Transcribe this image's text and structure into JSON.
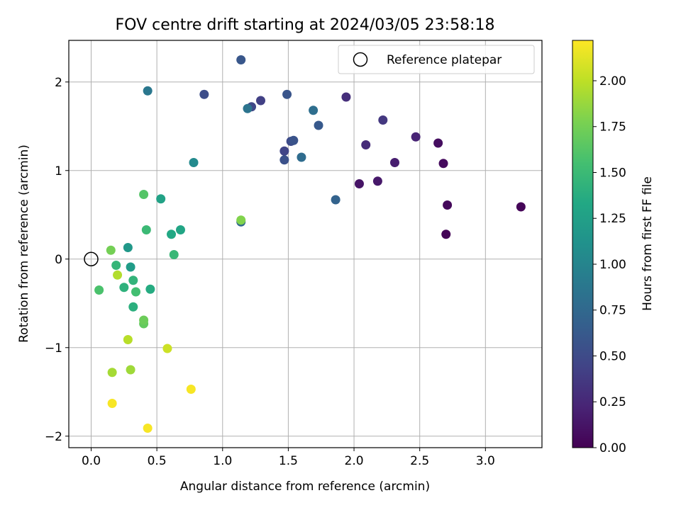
{
  "chart_data": {
    "type": "scatter",
    "title": "FOV centre drift starting at 2024/03/05 23:58:18",
    "xlabel": "Angular distance from reference (arcmin)",
    "ylabel": "Rotation from reference (arcmin)",
    "xlim": [
      -0.17,
      3.43
    ],
    "ylim": [
      -2.13,
      2.47
    ],
    "xticks": [
      0.0,
      0.5,
      1.0,
      1.5,
      2.0,
      2.5,
      3.0
    ],
    "xtick_labels": [
      "0.0",
      "0.5",
      "1.0",
      "1.5",
      "2.0",
      "2.5",
      "3.0"
    ],
    "yticks": [
      -2,
      -1,
      0,
      1,
      2
    ],
    "ytick_labels": [
      "−2",
      "−1",
      "0",
      "1",
      "2"
    ],
    "grid": true,
    "legend": {
      "position": "top-right",
      "entries": [
        "Reference platepar"
      ]
    },
    "reference_point": {
      "x": 0.0,
      "y": 0.0,
      "name": "Reference platepar"
    },
    "colorbar": {
      "label": "Hours from first FF file",
      "colormap": "viridis",
      "range": [
        0.0,
        2.22
      ],
      "ticks": [
        0.0,
        0.25,
        0.5,
        0.75,
        1.0,
        1.25,
        1.5,
        1.75,
        2.0
      ],
      "tick_labels": [
        "0.00",
        "0.25",
        "0.50",
        "0.75",
        "1.00",
        "1.25",
        "1.50",
        "1.75",
        "2.00"
      ]
    },
    "points": [
      {
        "x": 2.7,
        "y": 0.28,
        "h": 0.02
      },
      {
        "x": 3.27,
        "y": 0.59,
        "h": 0.03
      },
      {
        "x": 2.71,
        "y": 0.61,
        "h": 0.05
      },
      {
        "x": 2.68,
        "y": 1.08,
        "h": 0.06
      },
      {
        "x": 2.64,
        "y": 1.31,
        "h": 0.08
      },
      {
        "x": 2.04,
        "y": 0.85,
        "h": 0.12
      },
      {
        "x": 2.18,
        "y": 0.88,
        "h": 0.15
      },
      {
        "x": 2.31,
        "y": 1.09,
        "h": 0.18
      },
      {
        "x": 2.47,
        "y": 1.38,
        "h": 0.22
      },
      {
        "x": 2.09,
        "y": 1.29,
        "h": 0.27
      },
      {
        "x": 1.94,
        "y": 1.83,
        "h": 0.3
      },
      {
        "x": 2.22,
        "y": 1.57,
        "h": 0.36
      },
      {
        "x": 1.29,
        "y": 1.79,
        "h": 0.42
      },
      {
        "x": 1.47,
        "y": 1.22,
        "h": 0.45
      },
      {
        "x": 1.22,
        "y": 1.72,
        "h": 0.48
      },
      {
        "x": 1.52,
        "y": 1.33,
        "h": 0.5
      },
      {
        "x": 0.86,
        "y": 1.86,
        "h": 0.52
      },
      {
        "x": 1.47,
        "y": 1.12,
        "h": 0.55
      },
      {
        "x": 1.54,
        "y": 1.34,
        "h": 0.57
      },
      {
        "x": 1.49,
        "y": 1.86,
        "h": 0.58
      },
      {
        "x": 1.14,
        "y": 2.25,
        "h": 0.6
      },
      {
        "x": 1.73,
        "y": 1.51,
        "h": 0.62
      },
      {
        "x": 1.86,
        "y": 0.67,
        "h": 0.7
      },
      {
        "x": 1.14,
        "y": 0.42,
        "h": 0.75
      },
      {
        "x": 1.6,
        "y": 1.15,
        "h": 0.78
      },
      {
        "x": 1.69,
        "y": 1.68,
        "h": 0.8
      },
      {
        "x": 1.19,
        "y": 1.7,
        "h": 0.85
      },
      {
        "x": 0.43,
        "y": 1.9,
        "h": 0.88
      },
      {
        "x": 0.78,
        "y": 1.09,
        "h": 1.05
      },
      {
        "x": 0.28,
        "y": 0.13,
        "h": 1.18
      },
      {
        "x": 0.3,
        "y": -0.09,
        "h": 1.22
      },
      {
        "x": 0.53,
        "y": 0.68,
        "h": 1.27
      },
      {
        "x": 0.68,
        "y": 0.33,
        "h": 1.3
      },
      {
        "x": 0.61,
        "y": 0.28,
        "h": 1.33
      },
      {
        "x": 0.45,
        "y": -0.34,
        "h": 1.36
      },
      {
        "x": 0.32,
        "y": -0.54,
        "h": 1.4
      },
      {
        "x": 0.25,
        "y": -0.32,
        "h": 1.42
      },
      {
        "x": 0.32,
        "y": -0.24,
        "h": 1.44
      },
      {
        "x": 0.19,
        "y": -0.07,
        "h": 1.46
      },
      {
        "x": 0.63,
        "y": 0.05,
        "h": 1.48
      },
      {
        "x": 0.42,
        "y": 0.33,
        "h": 1.5
      },
      {
        "x": 0.34,
        "y": -0.37,
        "h": 1.54
      },
      {
        "x": 0.06,
        "y": -0.35,
        "h": 1.58
      },
      {
        "x": 0.4,
        "y": 0.73,
        "h": 1.62
      },
      {
        "x": 0.4,
        "y": -0.73,
        "h": 1.68
      },
      {
        "x": 0.4,
        "y": -0.69,
        "h": 1.72
      },
      {
        "x": 0.15,
        "y": 0.1,
        "h": 1.75
      },
      {
        "x": 1.14,
        "y": 0.44,
        "h": 1.8
      },
      {
        "x": 0.3,
        "y": -1.25,
        "h": 1.9
      },
      {
        "x": 0.16,
        "y": -1.28,
        "h": 1.92
      },
      {
        "x": 0.2,
        "y": -0.18,
        "h": 1.96
      },
      {
        "x": 0.28,
        "y": -0.91,
        "h": 1.98
      },
      {
        "x": 0.58,
        "y": -1.01,
        "h": 2.05
      },
      {
        "x": 0.16,
        "y": -1.63,
        "h": 2.2
      },
      {
        "x": 0.43,
        "y": -1.91,
        "h": 2.2
      },
      {
        "x": 0.76,
        "y": -1.47,
        "h": 2.2
      }
    ]
  }
}
